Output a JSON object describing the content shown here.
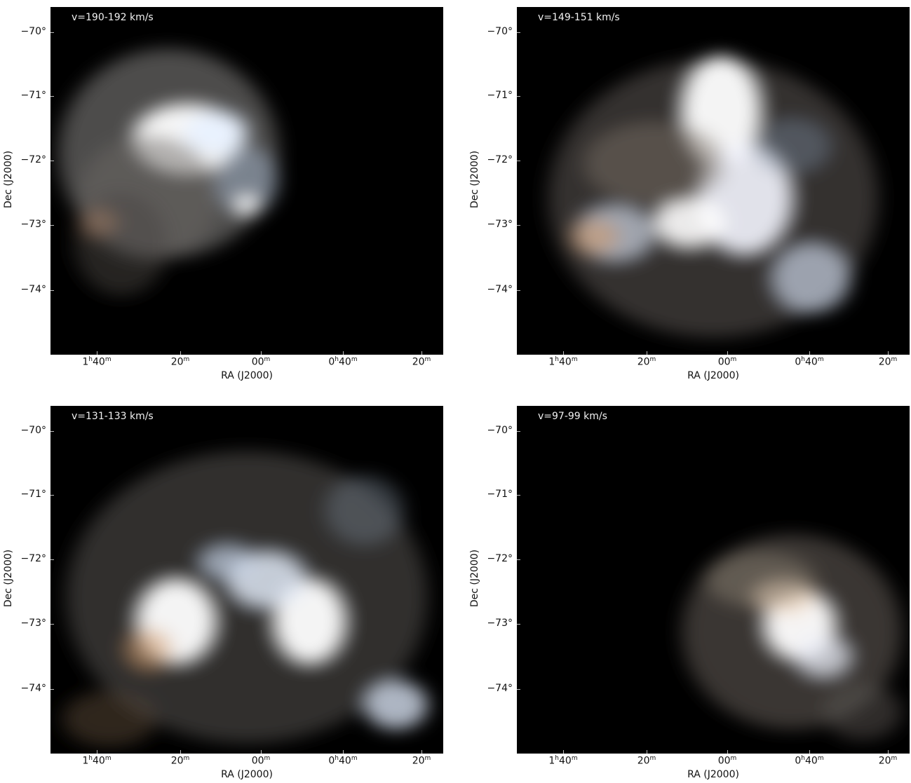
{
  "panels": [
    {
      "velocity_label": "v=190-192 km/s",
      "y_label": "Dec (J2000)",
      "x_label": "RA (J2000)"
    },
    {
      "velocity_label": "v=149-151 km/s",
      "y_label": "Dec (J2000)",
      "x_label": "RA (J2000)"
    },
    {
      "velocity_label": "v=131-133 km/s",
      "y_label": "Dec (J2000)",
      "x_label": "RA (J2000)"
    },
    {
      "velocity_label": "v=97-99 km/s",
      "y_label": "Dec (J2000)",
      "x_label": "RA (J2000)"
    }
  ],
  "y_ticks": [
    "−70°",
    "−71°",
    "−72°",
    "−73°",
    "−74°"
  ],
  "x_ticks": [
    {
      "main": "1",
      "sup1": "h",
      "mid": "40",
      "sup2": "m"
    },
    {
      "main": "",
      "sup1": "",
      "mid": "20",
      "sup2": "m"
    },
    {
      "main": "",
      "sup1": "",
      "mid": "00",
      "sup2": "m"
    },
    {
      "main": "0",
      "sup1": "h",
      "mid": "40",
      "sup2": "m"
    },
    {
      "main": "",
      "sup1": "",
      "mid": "20",
      "sup2": "m"
    }
  ]
}
